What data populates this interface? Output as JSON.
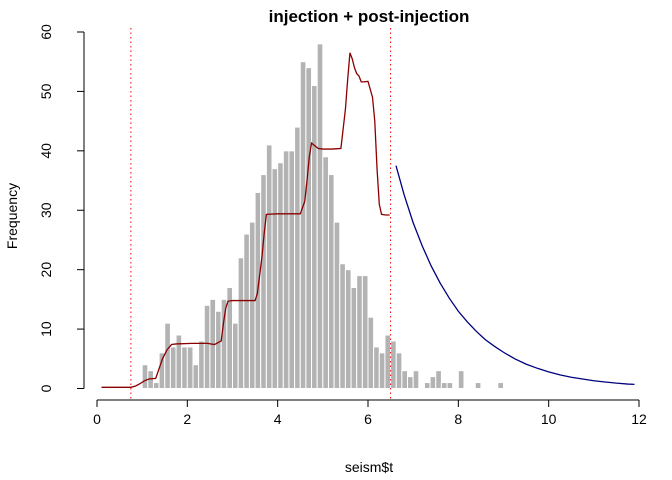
{
  "chart_data": {
    "type": "bar",
    "title": "injection + post-injection",
    "xlabel": "seism$t",
    "ylabel": "Frequency",
    "xlim": [
      0,
      12
    ],
    "ylim": [
      0,
      60
    ],
    "x_ticks": [
      "0",
      "2",
      "4",
      "6",
      "8",
      "10",
      "12"
    ],
    "y_ticks": [
      "0",
      "10",
      "20",
      "30",
      "40",
      "50",
      "60"
    ],
    "x_tick_values": [
      0,
      2,
      4,
      6,
      8,
      10,
      12
    ],
    "y_tick_values": [
      0,
      10,
      20,
      30,
      40,
      50,
      60
    ],
    "bin_width": 0.125,
    "bin_start": 1.0,
    "bar_values": [
      4,
      3,
      1,
      6,
      11,
      7,
      9,
      7,
      7,
      4,
      8,
      14,
      15,
      13,
      15,
      17,
      11,
      22,
      26,
      28,
      33,
      36,
      41,
      37,
      38,
      40,
      40,
      44,
      55,
      54,
      51,
      58,
      39,
      36,
      28,
      21,
      20,
      17,
      19,
      19,
      12,
      7,
      6,
      9,
      8,
      6,
      3,
      2,
      3,
      0,
      1,
      2,
      3,
      1,
      1,
      0,
      3,
      0,
      0,
      1,
      0,
      0,
      0,
      1
    ],
    "vlines": [
      0.75,
      6.5
    ],
    "fit_line": {
      "x": [
        0.1,
        0.75,
        0.85,
        0.95,
        1.05,
        1.15,
        1.3,
        1.45,
        1.55,
        1.65,
        1.75,
        2.1,
        2.45,
        2.6,
        2.75,
        2.8,
        2.85,
        2.9,
        3.0,
        3.5,
        3.55,
        3.6,
        3.65,
        3.7,
        3.75,
        4.0,
        4.5,
        4.6,
        4.65,
        4.7,
        4.75,
        4.9,
        5.0,
        5.2,
        5.4,
        5.5,
        5.55,
        5.6,
        5.65,
        5.7,
        5.75,
        5.8,
        5.85,
        5.9,
        6.0,
        6.1,
        6.15,
        6.2,
        6.25,
        6.3,
        6.4,
        6.48
      ],
      "y": [
        0.2,
        0.2,
        0.4,
        0.8,
        1.3,
        1.6,
        1.7,
        5.0,
        6.5,
        7.4,
        7.5,
        7.6,
        7.6,
        7.4,
        8.0,
        11.0,
        13.5,
        14.7,
        14.8,
        14.8,
        16.0,
        19.0,
        22.0,
        26.0,
        29.3,
        29.4,
        29.4,
        31.5,
        35.0,
        39.0,
        41.3,
        40.4,
        40.3,
        40.3,
        40.4,
        47.0,
        52.0,
        56.5,
        55.5,
        54.0,
        53.0,
        52.6,
        51.6,
        51.6,
        51.7,
        49.0,
        45.0,
        37.0,
        31.0,
        29.3,
        29.2,
        29.2
      ]
    },
    "decay_curve": {
      "x": [
        6.62,
        6.8,
        7.0,
        7.2,
        7.4,
        7.6,
        7.8,
        8.0,
        8.2,
        8.4,
        8.6,
        8.8,
        9.0,
        9.25,
        9.5,
        9.75,
        10.0,
        10.25,
        10.5,
        10.75,
        11.0,
        11.25,
        11.5,
        11.75,
        11.9
      ],
      "y": [
        37.5,
        32.6,
        27.9,
        24.0,
        20.6,
        17.7,
        15.2,
        13.0,
        11.2,
        9.6,
        8.2,
        7.1,
        6.1,
        5.0,
        4.1,
        3.4,
        2.8,
        2.3,
        1.9,
        1.6,
        1.3,
        1.1,
        0.9,
        0.75,
        0.7
      ]
    },
    "colors": {
      "bars": "#b3b3b3",
      "bar_border": "#ffffff",
      "fit_line": "#8b0000",
      "decay_curve": "#000080",
      "vlines": "#ff0000",
      "axes": "#000000"
    },
    "grid": false,
    "legend": "none"
  }
}
